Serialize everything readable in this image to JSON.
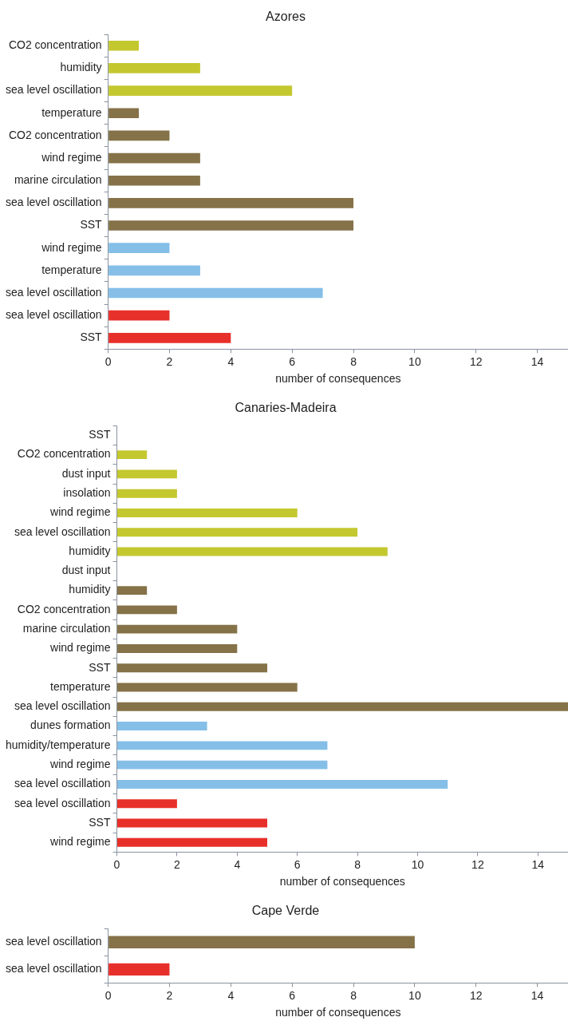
{
  "chart_data": [
    {
      "type": "bar",
      "orientation": "horizontal",
      "title": "Azores",
      "xlabel": "number of consequences",
      "categories": [
        "CO2 concentration",
        "humidity",
        "sea level oscillation",
        "temperature",
        "CO2 concentration",
        "wind regime",
        "marine circulation",
        "sea level oscillation",
        "SST",
        "wind regime",
        "temperature",
        "sea level oscillation",
        "sea level oscillation",
        "SST"
      ],
      "values": [
        1,
        3,
        6,
        1,
        2,
        3,
        3,
        8,
        8,
        2,
        3,
        7,
        2,
        4
      ],
      "colors": [
        "#c4c82f",
        "#c4c82f",
        "#c4c82f",
        "#857248",
        "#857248",
        "#857248",
        "#857248",
        "#857248",
        "#857248",
        "#85bfe8",
        "#85bfe8",
        "#85bfe8",
        "#e8302a",
        "#e8302a"
      ],
      "xlim": [
        0,
        15
      ],
      "xticks": [
        0,
        2,
        4,
        6,
        8,
        10,
        12,
        14
      ],
      "grid": false,
      "legend": false
    },
    {
      "type": "bar",
      "orientation": "horizontal",
      "title": "Canaries-Madeira",
      "xlabel": "number of consequences",
      "categories": [
        "SST",
        "CO2 concentration",
        "dust input",
        "insolation",
        "wind regime",
        "sea level oscillation",
        "humidity",
        "dust input",
        "humidity",
        "CO2 concentration",
        "marine circulation",
        "wind regime",
        "SST",
        "temperature",
        "sea level oscillation",
        "dunes formation",
        "humidity/temperature",
        "wind regime",
        "sea level oscillation",
        "sea level oscillation",
        "SST",
        "wind regime"
      ],
      "values": [
        0,
        1,
        2,
        2,
        6,
        8,
        9,
        0,
        1,
        2,
        4,
        4,
        5,
        6,
        15,
        3,
        7,
        7,
        11,
        2,
        5,
        5
      ],
      "colors": [
        "#c4c82f",
        "#c4c82f",
        "#c4c82f",
        "#c4c82f",
        "#c4c82f",
        "#c4c82f",
        "#c4c82f",
        "#857248",
        "#857248",
        "#857248",
        "#857248",
        "#857248",
        "#857248",
        "#857248",
        "#857248",
        "#85bfe8",
        "#85bfe8",
        "#85bfe8",
        "#85bfe8",
        "#e8302a",
        "#e8302a",
        "#e8302a"
      ],
      "xlim": [
        0,
        15
      ],
      "xticks": [
        0,
        2,
        4,
        6,
        8,
        10,
        12,
        14
      ],
      "grid": false,
      "legend": false
    },
    {
      "type": "bar",
      "orientation": "horizontal",
      "title": "Cape Verde",
      "xlabel": "number of consequences",
      "categories": [
        "sea level oscillation",
        "sea level oscillation"
      ],
      "values": [
        10,
        2
      ],
      "colors": [
        "#857248",
        "#e8302a"
      ],
      "xlim": [
        0,
        15
      ],
      "xticks": [
        0,
        2,
        4,
        6,
        8,
        10,
        12,
        14
      ],
      "grid": false,
      "legend": false
    }
  ]
}
